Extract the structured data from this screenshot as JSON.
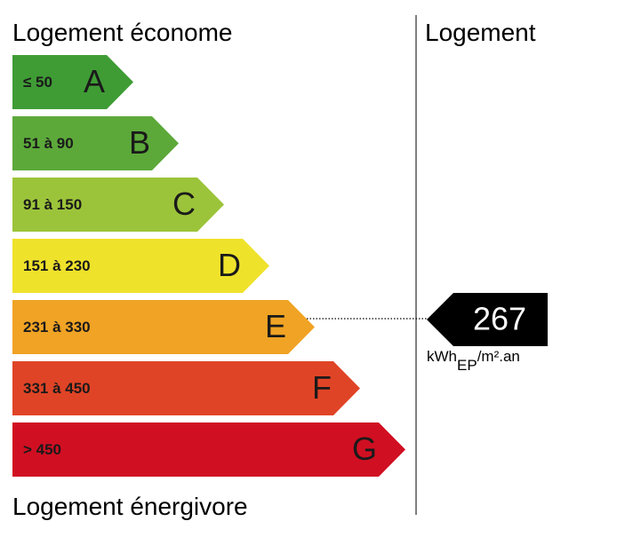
{
  "header": {
    "left_title": "Logement économe",
    "right_title": "Logement"
  },
  "classes": [
    {
      "range": "≤ 50",
      "letter": "A",
      "color": "#3f9c35"
    },
    {
      "range": "51 à 90",
      "letter": "B",
      "color": "#5ca93a"
    },
    {
      "range": "91 à 150",
      "letter": "C",
      "color": "#9cc43a"
    },
    {
      "range": "151 à 230",
      "letter": "D",
      "color": "#efe22b"
    },
    {
      "range": "231 à 330",
      "letter": "E",
      "color": "#f0a324"
    },
    {
      "range": "331 à 450",
      "letter": "F",
      "color": "#e04426"
    },
    {
      "range": "> 450",
      "letter": "G",
      "color": "#d10f22"
    }
  ],
  "footer": {
    "title": "Logement énergivore"
  },
  "indicator": {
    "value": 267,
    "unit": {
      "main": "kWh",
      "sub": "EP",
      "rest": "/m².an"
    }
  }
}
